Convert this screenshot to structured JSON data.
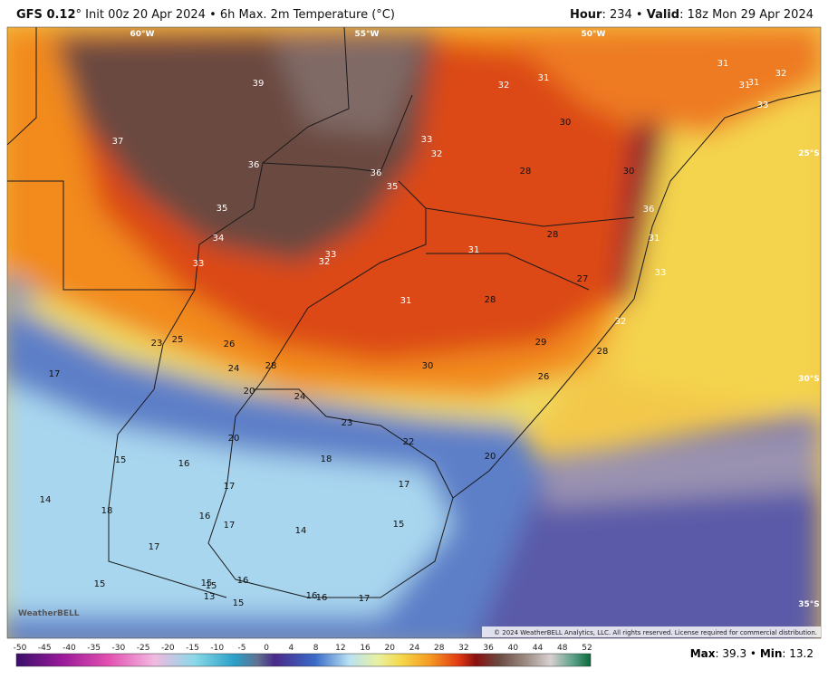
{
  "header": {
    "model": "GFS 0.12",
    "run": "° Init 00z 20 Apr 2024 • 6h Max. 2m Temperature (°C)",
    "hour_label": "Hour",
    "hour_value": ": 234 • ",
    "valid_label": "Valid",
    "valid_value": ": 18z Mon 29 Apr 2024"
  },
  "map": {
    "lon_labels": [
      "60°W",
      "55°W",
      "50°W"
    ],
    "lat_labels": [
      "25°S",
      "30°S",
      "35°S"
    ],
    "labels": [
      39,
      37,
      36,
      35,
      34,
      33,
      33,
      32,
      36,
      35,
      33,
      32,
      32,
      31,
      30,
      28,
      30,
      31,
      32,
      31,
      31,
      33,
      36,
      31,
      33,
      28,
      31,
      27,
      31,
      28,
      32,
      29,
      28,
      30,
      26,
      23,
      25,
      26,
      24,
      28,
      20,
      24,
      23,
      22,
      20,
      20,
      17,
      15,
      16,
      18,
      17,
      14,
      18,
      17,
      16,
      17,
      14,
      15,
      17,
      15,
      15,
      15,
      16,
      13,
      16,
      16,
      17,
      15
    ],
    "copyright": "© 2024 WeatherBELL Analytics, LLC. All rights reserved. License required for commercial distribution.",
    "logo": "WeatherBELL"
  },
  "colorbar": {
    "ticks": [
      -50,
      -45,
      -40,
      -35,
      -30,
      -25,
      -20,
      -15,
      -10,
      -5,
      0,
      4,
      8,
      12,
      16,
      20,
      24,
      28,
      32,
      36,
      40,
      44,
      48,
      52
    ]
  },
  "footer": {
    "max_label": "Max",
    "max_value": ": 39.3 • ",
    "min_label": "Min",
    "min_value": ": 13.2"
  }
}
